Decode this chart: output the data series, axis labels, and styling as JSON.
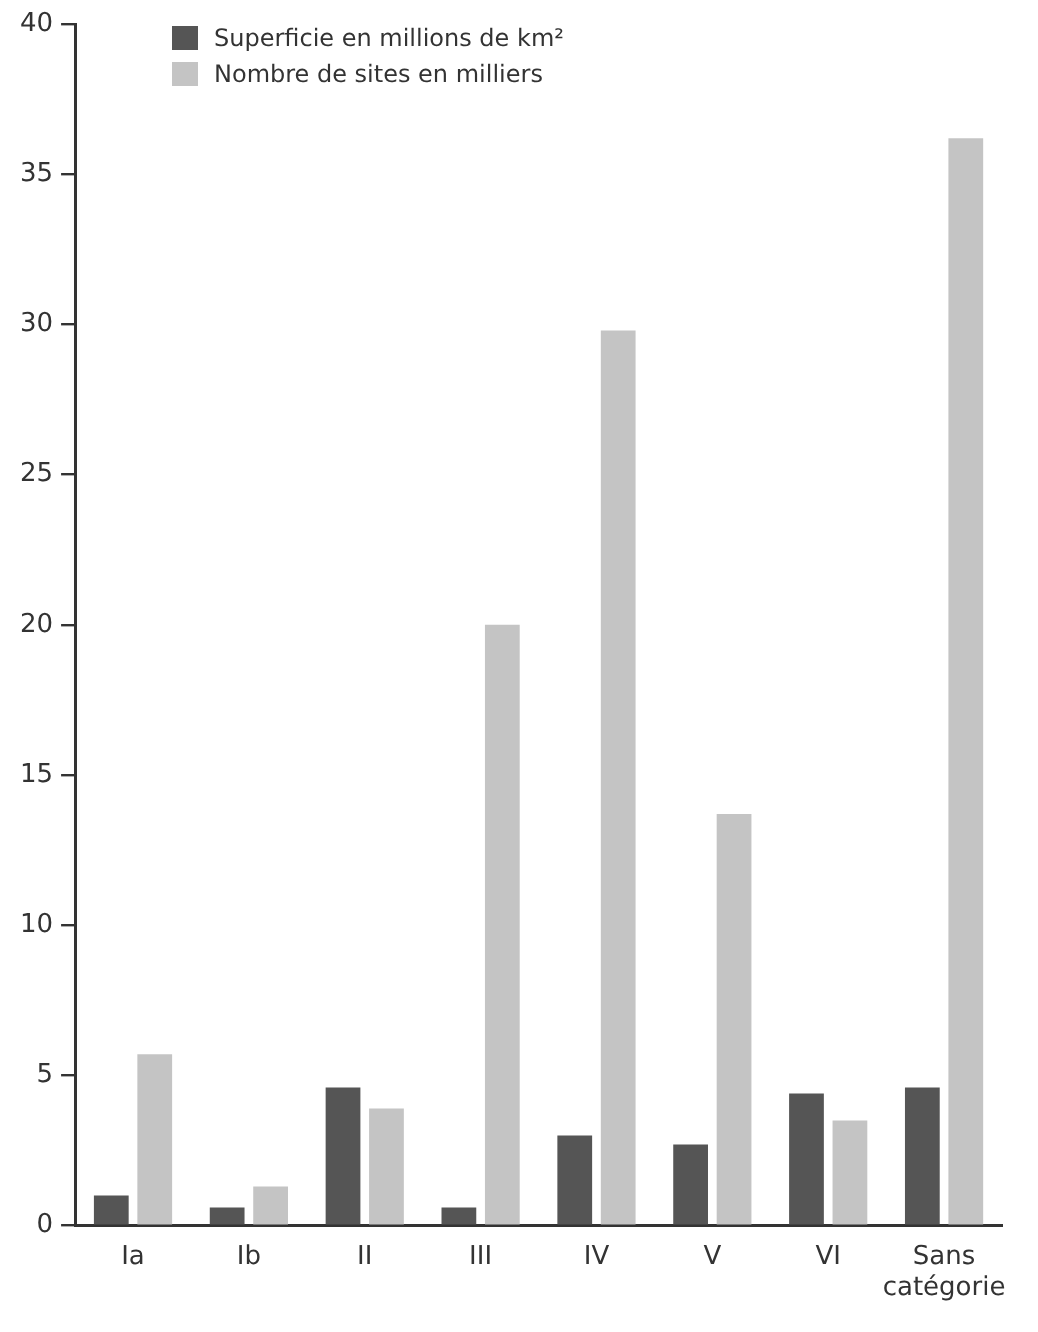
{
  "chart_data": {
    "type": "bar",
    "categories": [
      "Ia",
      "Ib",
      "II",
      "III",
      "IV",
      "V",
      "VI",
      "Sans catégorie"
    ],
    "series": [
      {
        "name": "Superficie en millions de km²",
        "color": "#555555",
        "values": [
          1.0,
          0.6,
          4.6,
          0.6,
          3.0,
          2.7,
          4.4,
          4.6
        ]
      },
      {
        "name": "Nombre de sites en milliers",
        "color": "#c4c4c4",
        "values": [
          5.7,
          1.3,
          3.9,
          20,
          29.8,
          13.7,
          3.5,
          36.2
        ]
      }
    ],
    "ylim": [
      0,
      40
    ],
    "yticks": [
      0,
      5,
      10,
      15,
      20,
      25,
      30,
      35,
      40
    ],
    "grid": false,
    "legend": "top left"
  }
}
